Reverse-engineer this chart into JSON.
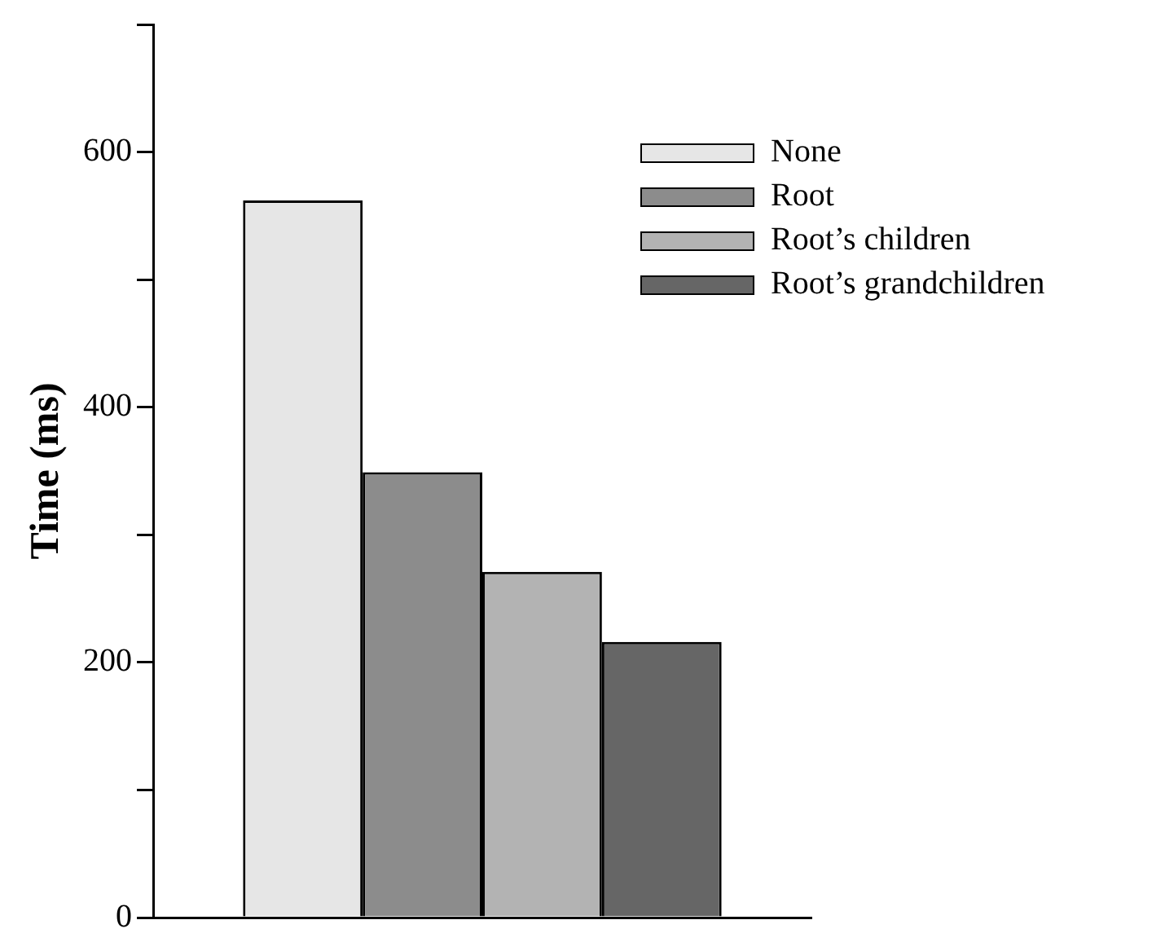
{
  "chart_data": {
    "type": "bar",
    "ylabel": "Time (ms)",
    "categories": [
      null
    ],
    "series": [
      {
        "name": "None",
        "color": "#e6e6e6",
        "values": [
          562
        ]
      },
      {
        "name": "Root",
        "color": "#8c8c8c",
        "values": [
          349
        ]
      },
      {
        "name": "Root’s children",
        "color": "#b3b3b3",
        "values": [
          271
        ]
      },
      {
        "name": "Root’s grandchildren",
        "color": "#666666",
        "values": [
          216
        ]
      }
    ],
    "ylim": [
      0,
      700
    ],
    "yticks": [
      0,
      {
        "value": 100,
        "label": null
      },
      200,
      {
        "value": 300,
        "label": null
      },
      400,
      {
        "value": 500,
        "label": null
      },
      600,
      {
        "value": 700,
        "label": null
      }
    ],
    "grid": false,
    "legend": "top right"
  }
}
